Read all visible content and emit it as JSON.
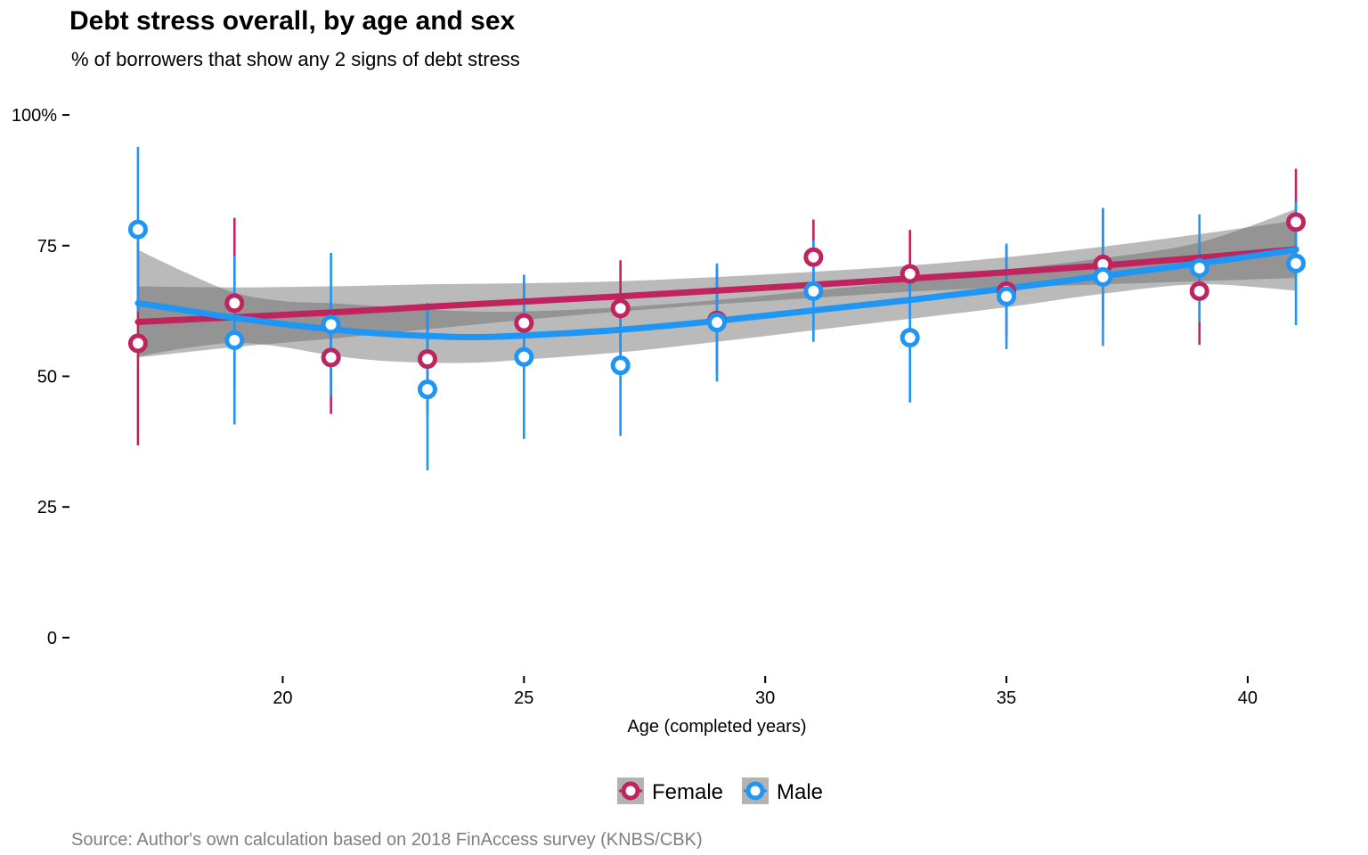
{
  "chart_data": {
    "type": "scatter",
    "title": "Debt stress overall, by age and sex",
    "subtitle": "% of borrowers that show any 2 signs of debt stress",
    "xlabel": "Age (completed years)",
    "ylabel": "",
    "caption": "Source: Author's own calculation based on 2018 FinAccess survey (KNBS/CBK)",
    "xlim": [
      16.3,
      41.7
    ],
    "ylim": [
      -7,
      107
    ],
    "x_ticks": [
      20,
      25,
      30,
      35,
      40
    ],
    "x_tick_labels": [
      "20",
      "25",
      "30",
      "35",
      "40"
    ],
    "y_ticks": [
      0,
      25,
      50,
      75,
      100
    ],
    "y_tick_labels": [
      "0",
      "25",
      "50",
      "75",
      "100%"
    ],
    "grid": false,
    "legend_position": "bottom",
    "series": [
      {
        "name": "Female",
        "color": "#C0245E",
        "points": [
          {
            "x": 17,
            "y": 56.3,
            "low": 36.8,
            "high": 75.8
          },
          {
            "x": 19,
            "y": 64.0,
            "low": 47.8,
            "high": 80.3
          },
          {
            "x": 21,
            "y": 53.6,
            "low": 42.8,
            "high": 64.4
          },
          {
            "x": 23,
            "y": 53.3,
            "low": 42.6,
            "high": 64.0
          },
          {
            "x": 25,
            "y": 60.2,
            "low": 51.0,
            "high": 69.4
          },
          {
            "x": 27,
            "y": 63.0,
            "low": 53.8,
            "high": 72.2
          },
          {
            "x": 29,
            "y": 60.7,
            "low": 50.8,
            "high": 70.6
          },
          {
            "x": 31,
            "y": 72.8,
            "low": 65.6,
            "high": 80.0
          },
          {
            "x": 33,
            "y": 69.6,
            "low": 61.2,
            "high": 78.0
          },
          {
            "x": 35,
            "y": 66.3,
            "low": 57.6,
            "high": 75.0
          },
          {
            "x": 37,
            "y": 71.4,
            "low": 60.6,
            "high": 82.2
          },
          {
            "x": 39,
            "y": 66.3,
            "low": 56.0,
            "high": 76.6
          },
          {
            "x": 41,
            "y": 79.5,
            "low": 69.3,
            "high": 89.7
          }
        ],
        "smooth": [
          {
            "x": 17,
            "y": 60.4,
            "low": 53.6,
            "high": 67.2
          },
          {
            "x": 19,
            "y": 61.3,
            "low": 55.6,
            "high": 67.0
          },
          {
            "x": 21,
            "y": 62.2,
            "low": 57.2,
            "high": 67.2
          },
          {
            "x": 23,
            "y": 63.3,
            "low": 59.0,
            "high": 67.6
          },
          {
            "x": 25,
            "y": 64.3,
            "low": 60.8,
            "high": 67.8
          },
          {
            "x": 27,
            "y": 65.3,
            "low": 62.4,
            "high": 68.2
          },
          {
            "x": 29,
            "y": 66.4,
            "low": 63.8,
            "high": 69.0
          },
          {
            "x": 31,
            "y": 67.5,
            "low": 65.0,
            "high": 70.0
          },
          {
            "x": 33,
            "y": 68.7,
            "low": 66.2,
            "high": 71.2
          },
          {
            "x": 35,
            "y": 69.9,
            "low": 67.0,
            "high": 72.8
          },
          {
            "x": 37,
            "y": 71.2,
            "low": 67.6,
            "high": 74.8
          },
          {
            "x": 39,
            "y": 72.7,
            "low": 68.2,
            "high": 77.2
          },
          {
            "x": 41,
            "y": 74.3,
            "low": 68.8,
            "high": 79.8
          }
        ]
      },
      {
        "name": "Male",
        "color": "#1F96F3",
        "points": [
          {
            "x": 17,
            "y": 78.1,
            "low": 62.3,
            "high": 93.9
          },
          {
            "x": 19,
            "y": 56.9,
            "low": 40.8,
            "high": 73.0
          },
          {
            "x": 21,
            "y": 59.9,
            "low": 46.2,
            "high": 73.6
          },
          {
            "x": 23,
            "y": 47.5,
            "low": 32.0,
            "high": 63.0
          },
          {
            "x": 25,
            "y": 53.7,
            "low": 38.0,
            "high": 69.4
          },
          {
            "x": 27,
            "y": 52.1,
            "low": 38.6,
            "high": 65.6
          },
          {
            "x": 29,
            "y": 60.3,
            "low": 49.0,
            "high": 71.6
          },
          {
            "x": 31,
            "y": 66.3,
            "low": 56.6,
            "high": 76.0
          },
          {
            "x": 33,
            "y": 57.4,
            "low": 45.0,
            "high": 69.8
          },
          {
            "x": 35,
            "y": 65.3,
            "low": 55.2,
            "high": 75.4
          },
          {
            "x": 37,
            "y": 69.0,
            "low": 55.8,
            "high": 82.2
          },
          {
            "x": 39,
            "y": 70.7,
            "low": 60.4,
            "high": 81.0
          },
          {
            "x": 41,
            "y": 71.6,
            "low": 59.8,
            "high": 83.4
          }
        ],
        "smooth": [
          {
            "x": 17,
            "y": 64.0,
            "low": 53.8,
            "high": 74.2
          },
          {
            "x": 18,
            "y": 62.6,
            "low": 55.4,
            "high": 69.8
          },
          {
            "x": 19,
            "y": 61.2,
            "low": 56.4,
            "high": 66.0
          },
          {
            "x": 20,
            "y": 60.0,
            "low": 55.6,
            "high": 64.4
          },
          {
            "x": 21,
            "y": 59.0,
            "low": 54.0,
            "high": 64.0
          },
          {
            "x": 22,
            "y": 58.2,
            "low": 53.0,
            "high": 63.4
          },
          {
            "x": 23,
            "y": 57.7,
            "low": 52.6,
            "high": 62.8
          },
          {
            "x": 24,
            "y": 57.5,
            "low": 52.6,
            "high": 62.4
          },
          {
            "x": 25,
            "y": 57.8,
            "low": 53.2,
            "high": 62.4
          },
          {
            "x": 27,
            "y": 58.9,
            "low": 54.6,
            "high": 63.2
          },
          {
            "x": 29,
            "y": 60.6,
            "low": 56.6,
            "high": 64.6
          },
          {
            "x": 31,
            "y": 62.6,
            "low": 58.8,
            "high": 66.4
          },
          {
            "x": 33,
            "y": 64.6,
            "low": 61.0,
            "high": 68.2
          },
          {
            "x": 35,
            "y": 66.8,
            "low": 63.2,
            "high": 70.4
          },
          {
            "x": 37,
            "y": 69.2,
            "low": 65.8,
            "high": 72.6
          },
          {
            "x": 39,
            "y": 71.6,
            "low": 67.6,
            "high": 75.6
          },
          {
            "x": 41,
            "y": 74.2,
            "low": 66.4,
            "high": 82.0
          }
        ]
      }
    ]
  }
}
